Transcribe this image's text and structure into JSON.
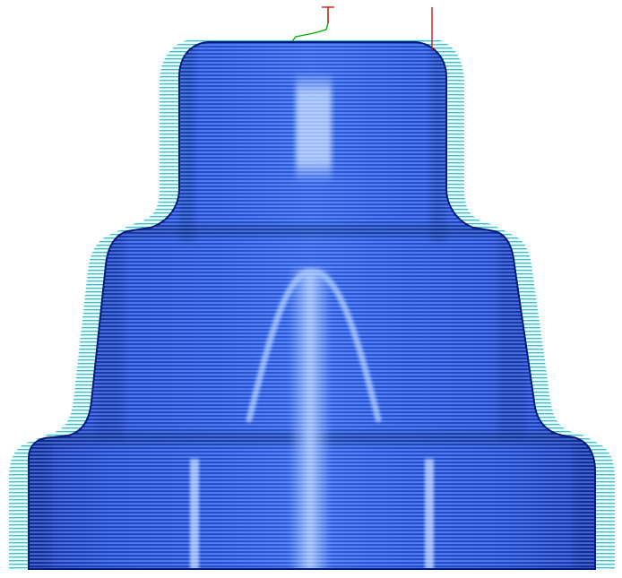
{
  "viewport": {
    "background": "#ffffff"
  },
  "scene": {
    "subject": "stepped-revolved-solid",
    "shading_colors": {
      "outline": "#001a7a",
      "edge": "#0a2fb0",
      "body": "#1d4fd8",
      "highlight": "#8fb5ff"
    },
    "toolpath": {
      "pattern": "horizontal-raster",
      "line_color": "#28c8d8",
      "scanline_color": "#ffffff"
    },
    "lead_in": {
      "color": "#00b000"
    },
    "tool_marker": {
      "color": "#d81818"
    }
  }
}
